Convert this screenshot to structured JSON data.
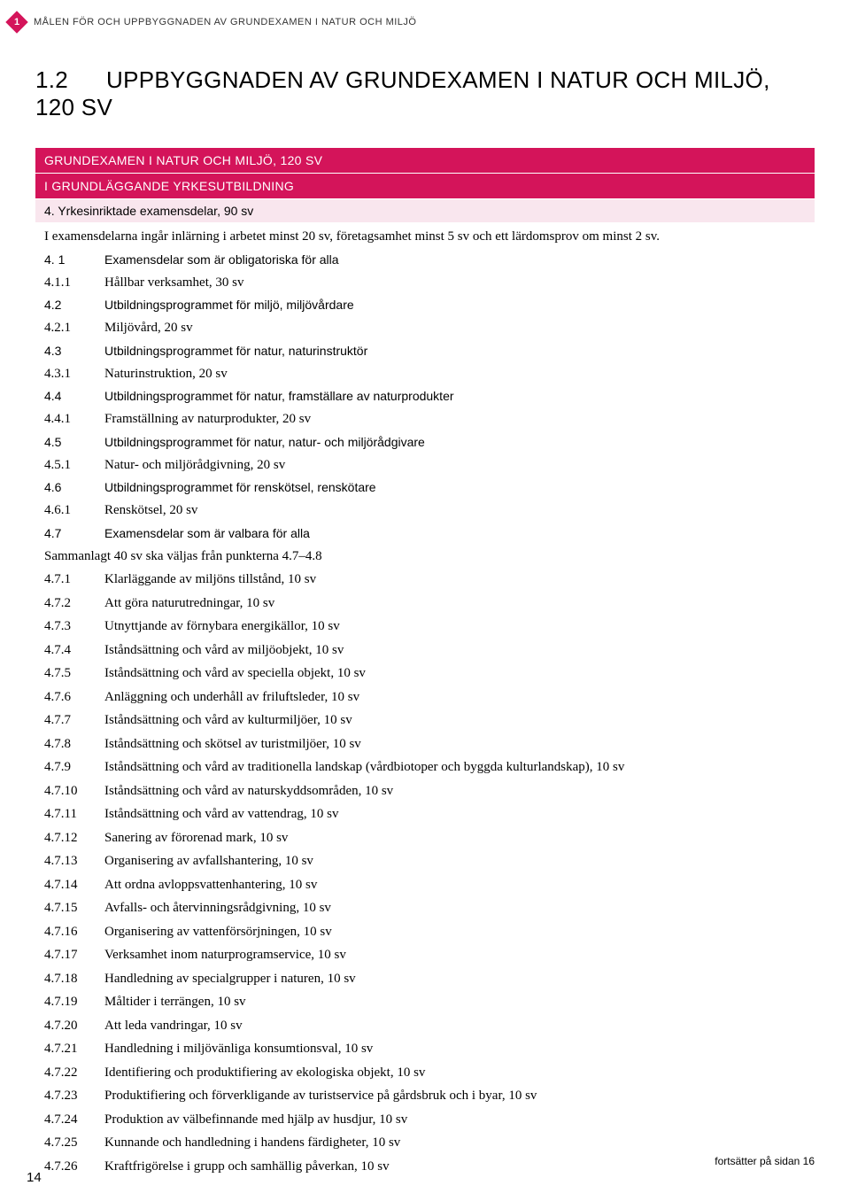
{
  "header": {
    "badge_number": "1",
    "header_text": "MÅLEN FÖR OCH UPPBYGGNADEN AV GRUNDEXAMEN I NATUR OCH MILJÖ"
  },
  "title": {
    "number": "1.2",
    "text": "UPPBYGGNADEN AV GRUNDEXAMEN I NATUR OCH MILJÖ, 120 SV"
  },
  "table": {
    "pink1": "GRUNDEXAMEN I NATUR OCH MILJÖ, 120 SV",
    "pink2": "I GRUNDLÄGGANDE YRKESUTBILDNING",
    "light1": "4. Yrkesinriktade examensdelar, 90 sv",
    "intro": "I examensdelarna ingår inlärning i arbetet minst 20 sv, företagsamhet minst 5 sv och ett lärdomsprov om minst 2 sv.",
    "rows": [
      {
        "idx": "4. 1",
        "txt": "Examensdelar som är obligatoriska för alla",
        "style": "cond"
      },
      {
        "idx": "4.1.1",
        "txt": "Hållbar verksamhet, 30 sv",
        "style": "serif"
      },
      {
        "idx": "4.2",
        "txt": "Utbildningsprogrammet för miljö, miljövårdare",
        "style": "cond"
      },
      {
        "idx": "4.2.1",
        "txt": "Miljövård, 20 sv",
        "style": "serif"
      },
      {
        "idx": "4.3",
        "txt": "Utbildningsprogrammet för natur, naturinstruktör",
        "style": "cond"
      },
      {
        "idx": "4.3.1",
        "txt": "Naturinstruktion, 20 sv",
        "style": "serif"
      },
      {
        "idx": "4.4",
        "txt": "Utbildningsprogrammet för natur, framställare av naturprodukter",
        "style": "cond"
      },
      {
        "idx": "4.4.1",
        "txt": "Framställning av naturprodukter, 20 sv",
        "style": "serif"
      },
      {
        "idx": "4.5",
        "txt": "Utbildningsprogrammet för natur, natur- och miljörådgivare",
        "style": "cond"
      },
      {
        "idx": "4.5.1",
        "txt": "Natur- och miljörådgivning, 20 sv",
        "style": "serif"
      },
      {
        "idx": "4.6",
        "txt": "Utbildningsprogrammet för renskötsel, renskötare",
        "style": "cond"
      },
      {
        "idx": "4.6.1",
        "txt": "Renskötsel, 20 sv",
        "style": "serif"
      },
      {
        "idx": "4.7",
        "txt": "Examensdelar som är valbara för alla",
        "style": "cond"
      }
    ],
    "summary": "Sammanlagt 40 sv ska väljas från punkterna 4.7–4.8",
    "subitems": [
      {
        "idx": "4.7.1",
        "txt": "Klarläggande av miljöns tillstånd, 10 sv"
      },
      {
        "idx": "4.7.2",
        "txt": "Att göra naturutredningar, 10 sv"
      },
      {
        "idx": "4.7.3",
        "txt": "Utnyttjande av förnybara energikällor, 10 sv"
      },
      {
        "idx": "4.7.4",
        "txt": "Iståndsättning och vård av miljöobjekt, 10 sv"
      },
      {
        "idx": "4.7.5",
        "txt": "Iståndsättning och vård av speciella objekt, 10 sv"
      },
      {
        "idx": "4.7.6",
        "txt": "Anläggning och underhåll av friluftsleder, 10 sv"
      },
      {
        "idx": "4.7.7",
        "txt": "Iståndsättning och vård av kulturmiljöer, 10 sv"
      },
      {
        "idx": "4.7.8",
        "txt": "Iståndsättning och skötsel av turistmiljöer, 10 sv"
      },
      {
        "idx": "4.7.9",
        "txt": "Iståndsättning och vård av traditionella landskap (vårdbiotoper och byggda kulturlandskap), 10 sv"
      },
      {
        "idx": "4.7.10",
        "txt": "Iståndsättning och vård av naturskyddsområden, 10 sv"
      },
      {
        "idx": "4.7.11",
        "txt": "Iståndsättning och vård av vattendrag, 10 sv"
      },
      {
        "idx": "4.7.12",
        "txt": "Sanering av förorenad mark, 10 sv"
      },
      {
        "idx": "4.7.13",
        "txt": "Organisering av avfallshantering, 10 sv"
      },
      {
        "idx": "4.7.14",
        "txt": "Att ordna avloppsvattenhantering, 10 sv"
      },
      {
        "idx": "4.7.15",
        "txt": "Avfalls- och återvinningsrådgivning, 10 sv"
      },
      {
        "idx": "4.7.16",
        "txt": "Organisering av vattenförsörjningen, 10 sv"
      },
      {
        "idx": "4.7.17",
        "txt": "Verksamhet inom naturprogramservice, 10 sv"
      },
      {
        "idx": "4.7.18",
        "txt": "Handledning av specialgrupper i naturen, 10 sv"
      },
      {
        "idx": "4.7.19",
        "txt": "Måltider i terrängen, 10 sv"
      },
      {
        "idx": "4.7.20",
        "txt": "Att leda vandringar, 10 sv"
      },
      {
        "idx": "4.7.21",
        "txt": "Handledning i miljövänliga konsumtionsval, 10 sv"
      },
      {
        "idx": "4.7.22",
        "txt": "Identifiering och produktifiering av ekologiska objekt, 10 sv"
      },
      {
        "idx": "4.7.23",
        "txt": "Produktifiering och förverkligande av turistservice på gårdsbruk och i byar, 10 sv"
      },
      {
        "idx": "4.7.24",
        "txt": "Produktion av välbefinnande med hjälp av husdjur, 10 sv"
      },
      {
        "idx": "4.7.25",
        "txt": "Kunnande och handledning i handens färdigheter, 10 sv"
      },
      {
        "idx": "4.7.26",
        "txt": "Kraftfrigörelse i grupp och samhällig påverkan, 10 sv"
      }
    ]
  },
  "footer": {
    "continue": "fortsätter på sidan 16",
    "page": "14"
  },
  "colors": {
    "accent": "#d4145a",
    "light": "#f9e6ee"
  }
}
